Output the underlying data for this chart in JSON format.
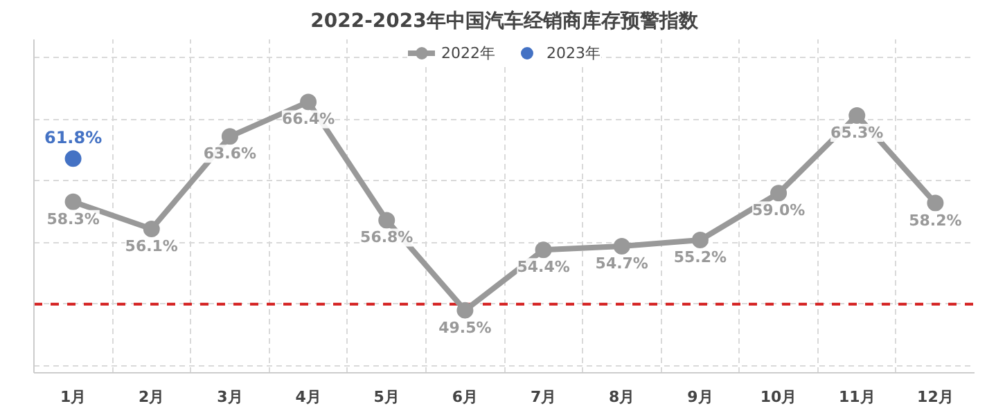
{
  "chart_data": {
    "type": "line",
    "title": "2022-2023年中国汽车经销商库存预警指数",
    "categories": [
      "1月",
      "2月",
      "3月",
      "4月",
      "5月",
      "6月",
      "7月",
      "8月",
      "9月",
      "10月",
      "11月",
      "12月"
    ],
    "series": [
      {
        "name": "2022年",
        "color": "#999999",
        "values": [
          58.3,
          56.1,
          63.6,
          66.4,
          56.8,
          49.5,
          54.4,
          54.7,
          55.2,
          59.0,
          65.3,
          58.2
        ],
        "value_labels": [
          "58.3%",
          "56.1%",
          "63.6%",
          "66.4%",
          "56.8%",
          "49.5%",
          "54.4%",
          "54.7%",
          "55.2%",
          "59.0%",
          "65.3%",
          "58.2%"
        ]
      },
      {
        "name": "2023年",
        "color": "#4472c4",
        "values": [
          61.8,
          null,
          null,
          null,
          null,
          null,
          null,
          null,
          null,
          null,
          null,
          null
        ],
        "value_labels": [
          "61.8%",
          null,
          null,
          null,
          null,
          null,
          null,
          null,
          null,
          null,
          null,
          null
        ]
      }
    ],
    "tick_labels": "x",
    "ref_lines": [
      {
        "axis": "y",
        "value": 50,
        "color": "#d42020",
        "line_style": "dashed"
      }
    ],
    "grid": true,
    "legend": "top",
    "marker": "circle",
    "line_style": "solid"
  }
}
